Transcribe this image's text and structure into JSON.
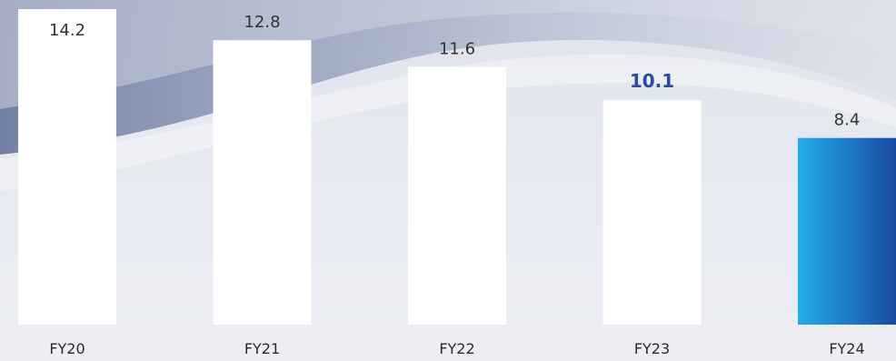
{
  "chart_data": {
    "type": "bar",
    "categories": [
      "FY20",
      "FY21",
      "FY22",
      "FY23",
      "FY24"
    ],
    "values": [
      14.2,
      12.8,
      11.6,
      10.1,
      8.4
    ],
    "value_labels": [
      "14.2",
      "12.8",
      "11.6",
      "10.1",
      "8.4"
    ],
    "title": "",
    "xlabel": "",
    "ylabel": "",
    "ylim": [
      0,
      14.2
    ],
    "grid": false,
    "highlight_label_index": 3,
    "highlight_bar_index": 4,
    "colors": {
      "bar": "#ffffff",
      "highlight_bar_start": "#22aee8",
      "highlight_bar_end": "#1a4aa0",
      "highlight_label": "#2a4aa0",
      "value_label": "#333333",
      "category_label": "#2a2a2a"
    }
  }
}
